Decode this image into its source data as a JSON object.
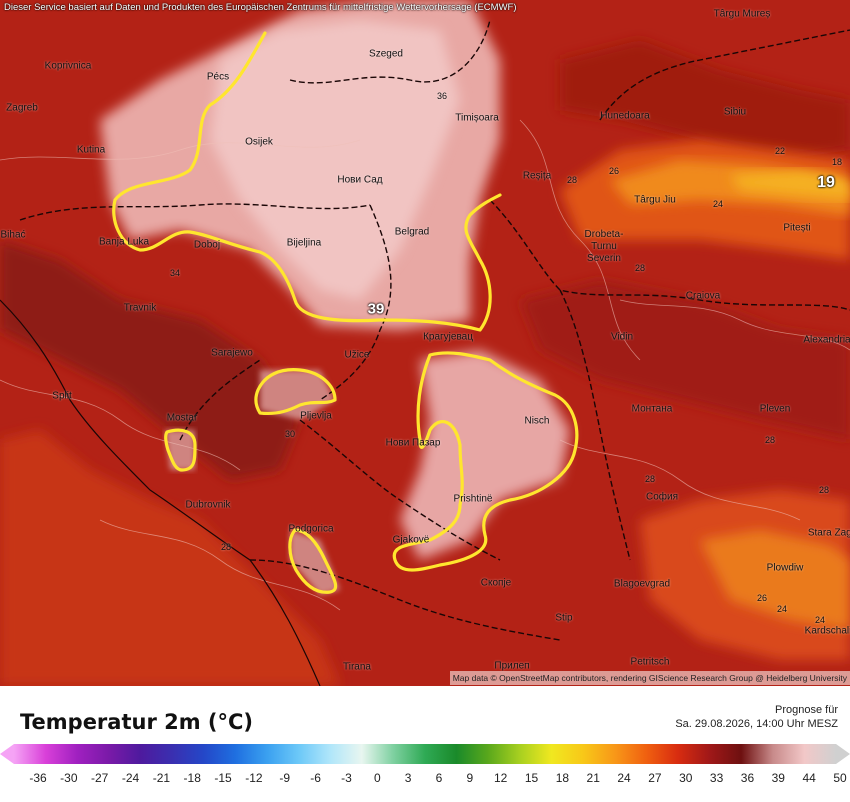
{
  "header": {
    "attribution_top": "Dieser Service basiert auf Daten und Produkten des Europäischen Zentrums für mittelfristige Wettervorhersage (ECMWF)"
  },
  "map": {
    "attribution_bottom": "Map data © OpenStreetMap contributors, rendering GIScience Research Group @ Heidelberg University",
    "cities": [
      "Târgu Mureș",
      "Koprivnica",
      "Pécs",
      "Szeged",
      "Zagreb",
      "Osijek",
      "Timișoara",
      "Hunedoara",
      "Sibiu",
      "Kutina",
      "Нови Сад",
      "Reșița",
      "Târgu Jiu",
      "Bihać",
      "Banja Luka",
      "Doboj",
      "Bijeljina",
      "Belgrad",
      "Drobeta-Turnu Severin",
      "Pitești",
      "Travnik",
      "Craiova",
      "Крагујевац",
      "Sarajewo",
      "Užice",
      "Vidin",
      "Alexandria",
      "Split",
      "Pljevlja",
      "Монтана",
      "Pleven",
      "Mostar",
      "Нови Пазар",
      "Nisch",
      "Dubrovnik",
      "Prishtinë",
      "София",
      "Podgorica",
      "Gjakovë",
      "Скопје",
      "Blagoevgrad",
      "Plowdiw",
      "Stip",
      "Kardschali",
      "Tirana",
      "Прилеп",
      "Petritsch",
      "Stara Zagora"
    ],
    "contour_labels": [
      "36",
      "22",
      "26",
      "24",
      "34",
      "28",
      "30",
      "18",
      "28",
      "26",
      "24",
      "28",
      "28",
      "28",
      "24",
      "28"
    ],
    "point_values": [
      "19",
      "39"
    ]
  },
  "legend": {
    "title": "Temperatur 2m (°C)",
    "forecast_label": "Prognose für",
    "forecast_datetime": "Sa. 29.08.2026, 14:00 Uhr MESZ",
    "ticks": [
      "-36",
      "-30",
      "-27",
      "-24",
      "-21",
      "-18",
      "-15",
      "-12",
      "-9",
      "-6",
      "-3",
      "0",
      "3",
      "6",
      "9",
      "12",
      "15",
      "18",
      "21",
      "24",
      "27",
      "30",
      "33",
      "36",
      "39",
      "44",
      "50"
    ],
    "colors": {
      "c_m36": "#f5a3f5",
      "c_m30": "#d940d9",
      "c_m27": "#a020c0",
      "c_m24": "#7a1aa8",
      "c_m21": "#4e1a9e",
      "c_m18": "#3a2fb0",
      "c_m15": "#2447c8",
      "c_m12": "#1f6fe0",
      "c_m9": "#3aa0f0",
      "c_m6": "#6cc8f8",
      "c_m3": "#b0e6fa",
      "c_0": "#e8f6f0",
      "c_3": "#7ed0a0",
      "c_6": "#2faa55",
      "c_9": "#1a8a2a",
      "c_12": "#5aa81c",
      "c_15": "#a8d020",
      "c_18": "#f0e820",
      "c_21": "#f8c818",
      "c_24": "#f89818",
      "c_27": "#f06010",
      "c_30": "#d82c10",
      "c_33": "#a01818",
      "c_36": "#6e1010",
      "c_39": "#c88a8a",
      "c_44": "#f2c8c8",
      "c_50": "#d0d0d0"
    }
  }
}
